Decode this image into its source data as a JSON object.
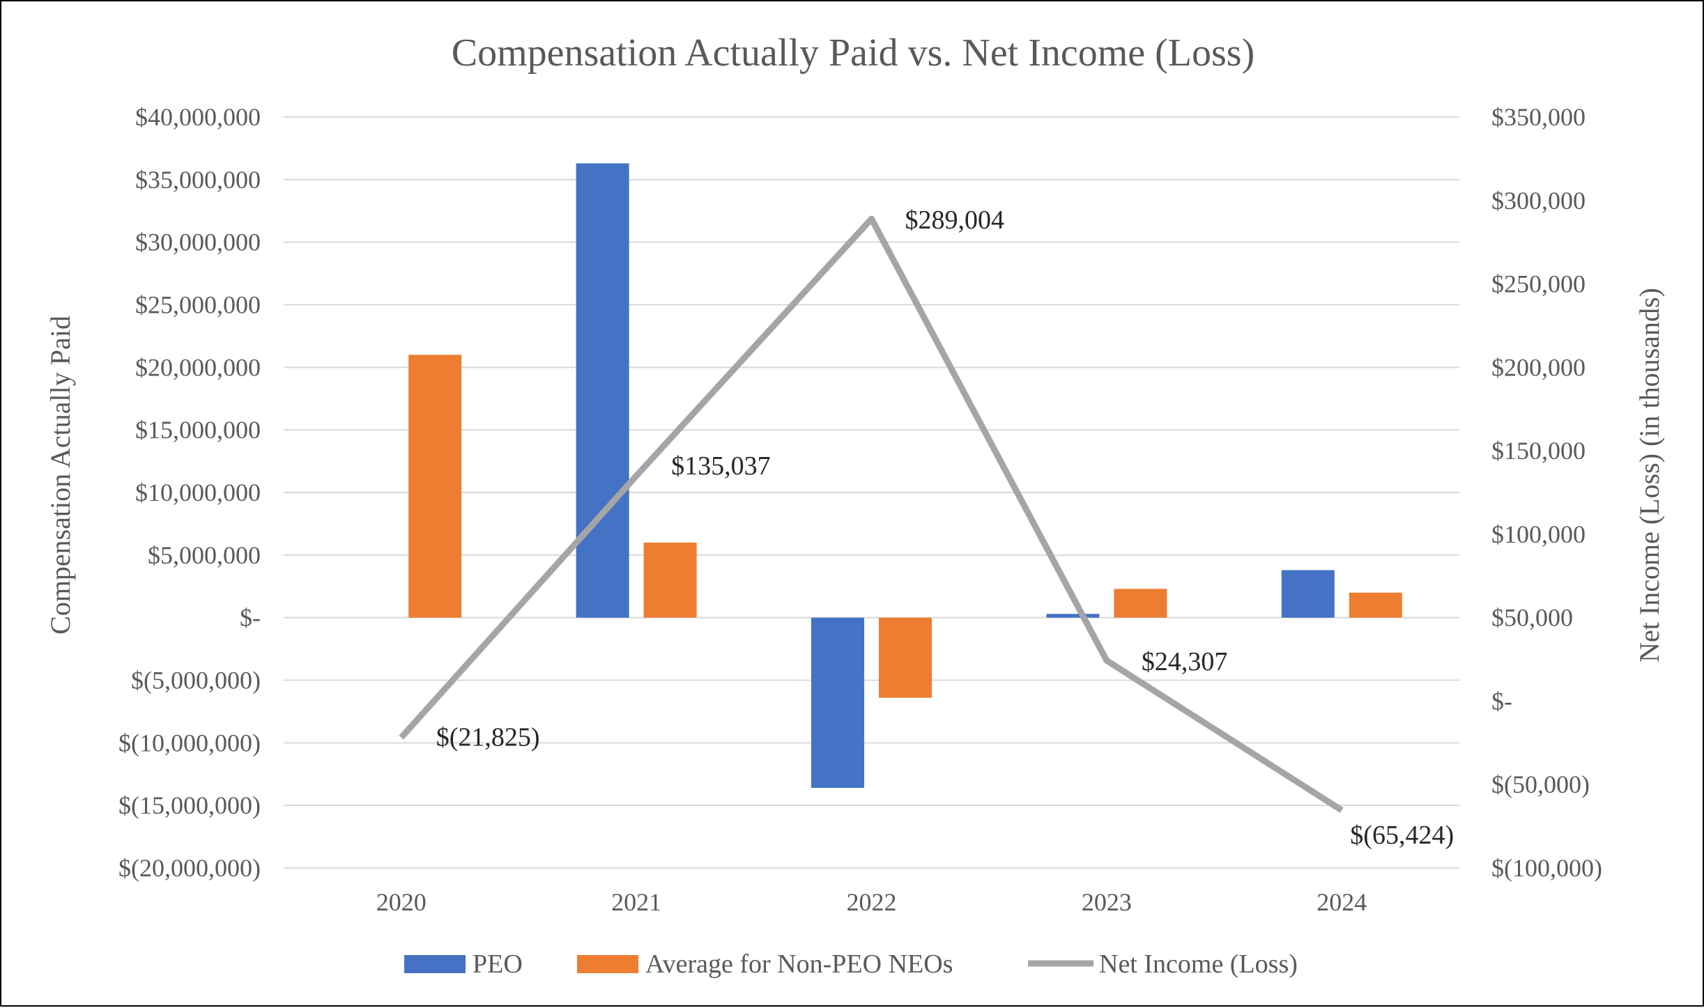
{
  "chart_data": {
    "type": "bar",
    "title": "Compensation Actually Paid vs. Net Income (Loss)",
    "categories": [
      "2020",
      "2021",
      "2022",
      "2023",
      "2024"
    ],
    "ylabel": "Compensation Actually Paid",
    "y2label": "Net Income (Loss) (in thousands)",
    "ylim": [
      -20000000,
      40000000
    ],
    "y2lim": [
      -100000,
      350000
    ],
    "yticks": [
      {
        "value": 40000000,
        "label": "$40,000,000"
      },
      {
        "value": 35000000,
        "label": "$35,000,000"
      },
      {
        "value": 30000000,
        "label": "$30,000,000"
      },
      {
        "value": 25000000,
        "label": "$25,000,000"
      },
      {
        "value": 20000000,
        "label": "$20,000,000"
      },
      {
        "value": 15000000,
        "label": "$15,000,000"
      },
      {
        "value": 10000000,
        "label": "$10,000,000"
      },
      {
        "value": 5000000,
        "label": "$5,000,000"
      },
      {
        "value": 0,
        "label": "$-"
      },
      {
        "value": -5000000,
        "label": "$(5,000,000)"
      },
      {
        "value": -10000000,
        "label": "$(10,000,000)"
      },
      {
        "value": -15000000,
        "label": "$(15,000,000)"
      },
      {
        "value": -20000000,
        "label": "$(20,000,000)"
      }
    ],
    "y2ticks": [
      {
        "value": 350000,
        "label": "$350,000"
      },
      {
        "value": 300000,
        "label": "$300,000"
      },
      {
        "value": 250000,
        "label": "$250,000"
      },
      {
        "value": 200000,
        "label": "$200,000"
      },
      {
        "value": 150000,
        "label": "$150,000"
      },
      {
        "value": 100000,
        "label": "$100,000"
      },
      {
        "value": 50000,
        "label": "$50,000"
      },
      {
        "value": 0,
        "label": "$-"
      },
      {
        "value": -50000,
        "label": "$(50,000)"
      },
      {
        "value": -100000,
        "label": "$(100,000)"
      }
    ],
    "series": [
      {
        "name": "PEO",
        "type": "bar",
        "axis": "left",
        "color": "#4472C4",
        "values": [
          0,
          36300000,
          -13600000,
          300000,
          3800000
        ]
      },
      {
        "name": "Average for Non-PEO NEOs",
        "type": "bar",
        "axis": "left",
        "color": "#ED7D31",
        "values": [
          21000000,
          6000000,
          -6400000,
          2300000,
          2000000
        ]
      },
      {
        "name": "Net Income (Loss)",
        "type": "line",
        "axis": "right",
        "color": "#A5A5A5",
        "values": [
          -21825,
          135037,
          289004,
          24307,
          -65424
        ],
        "labels": [
          "$(21,825)",
          "$135,037",
          "$289,004",
          "$24,307",
          "$(65,424)"
        ]
      }
    ],
    "grid": true,
    "legend": "bottom"
  }
}
